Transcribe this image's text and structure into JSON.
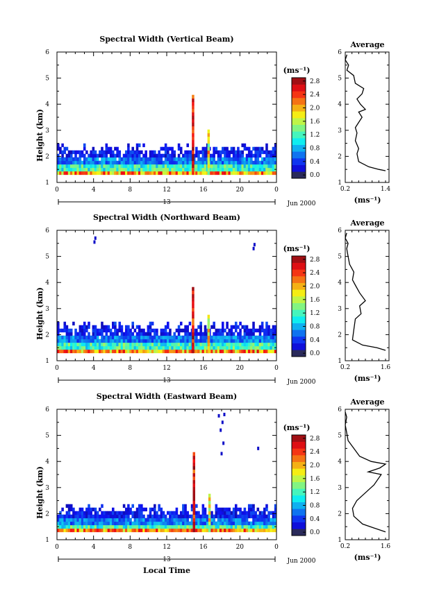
{
  "chart_data": [
    {
      "type": "heatmap",
      "title": "Spectral Width (Vertical Beam)",
      "ylabel": "Height (km)",
      "x_ticks": [
        "0",
        "4",
        "8",
        "12",
        "16",
        "20",
        "0"
      ],
      "day_label": "13",
      "date_label": "Jun 2000",
      "xlim": [
        0,
        24
      ],
      "ylim": [
        1,
        6
      ],
      "y_ticks": [
        "1",
        "2",
        "3",
        "4",
        "5",
        "6"
      ],
      "colorbar": {
        "unit": "(ms⁻¹)",
        "ticks": [
          "0.0",
          "0.4",
          "0.8",
          "1.2",
          "1.6",
          "2.0",
          "2.4",
          "2.8"
        ],
        "range": [
          0,
          3.0
        ]
      },
      "layer_top_km": 2.5,
      "spikes": [
        {
          "hour": 14.9,
          "top_km": 4.35
        },
        {
          "hour": 16.6,
          "top_km": 3.0
        }
      ],
      "isolated_echoes": [],
      "average_profile": {
        "title": "Average",
        "xlabel": "(ms⁻¹)",
        "x_ticks": [
          "0.2",
          "1.4"
        ],
        "xlim": [
          0.2,
          1.4
        ],
        "points": [
          [
            1.4,
            1.45
          ],
          [
            1.2,
            1.5
          ],
          [
            0.9,
            1.6
          ],
          [
            0.6,
            1.8
          ],
          [
            0.55,
            2.1
          ],
          [
            0.6,
            2.3
          ],
          [
            0.5,
            2.6
          ],
          [
            0.55,
            2.9
          ],
          [
            0.5,
            3.1
          ],
          [
            0.6,
            3.3
          ],
          [
            0.7,
            3.5
          ],
          [
            0.6,
            3.7
          ],
          [
            0.8,
            3.8
          ],
          [
            0.65,
            4.0
          ],
          [
            0.55,
            4.2
          ],
          [
            0.7,
            4.4
          ],
          [
            0.75,
            4.6
          ],
          [
            0.5,
            4.8
          ],
          [
            0.45,
            5.1
          ],
          [
            0.25,
            5.3
          ],
          [
            0.3,
            5.5
          ],
          [
            0.2,
            5.7
          ],
          [
            0.25,
            5.9
          ]
        ]
      }
    },
    {
      "type": "heatmap",
      "title": "Spectral Width (Northward Beam)",
      "ylabel": "Height (km)",
      "x_ticks": [
        "0",
        "4",
        "8",
        "12",
        "16",
        "20",
        "0"
      ],
      "day_label": "13",
      "date_label": "Jun 2000",
      "xlim": [
        0,
        24
      ],
      "ylim": [
        1,
        6
      ],
      "y_ticks": [
        "1",
        "2",
        "3",
        "4",
        "5",
        "6"
      ],
      "colorbar": {
        "unit": "(ms⁻¹)",
        "ticks": [
          "0.0",
          "0.4",
          "0.8",
          "1.2",
          "1.6",
          "2.0",
          "2.4",
          "2.8"
        ],
        "range": [
          0,
          3.0
        ]
      },
      "layer_top_km": 2.5,
      "spikes": [
        {
          "hour": 14.9,
          "top_km": 3.8
        },
        {
          "hour": 16.6,
          "top_km": 2.7
        }
      ],
      "isolated_echoes": [
        {
          "hour": 4.1,
          "km": 5.55
        },
        {
          "hour": 4.2,
          "km": 5.7
        },
        {
          "hour": 21.5,
          "km": 5.3
        },
        {
          "hour": 21.6,
          "km": 5.45
        }
      ],
      "average_profile": {
        "title": "Average",
        "xlabel": "(ms⁻¹)",
        "x_ticks": [
          "0.2",
          "1.6"
        ],
        "xlim": [
          0.2,
          1.6
        ],
        "points": [
          [
            1.6,
            1.4
          ],
          [
            1.3,
            1.5
          ],
          [
            0.8,
            1.6
          ],
          [
            0.45,
            1.8
          ],
          [
            0.5,
            2.2
          ],
          [
            0.55,
            2.6
          ],
          [
            0.75,
            2.8
          ],
          [
            0.7,
            3.1
          ],
          [
            0.9,
            3.3
          ],
          [
            0.7,
            3.6
          ],
          [
            0.55,
            3.9
          ],
          [
            0.45,
            4.1
          ],
          [
            0.5,
            4.4
          ],
          [
            0.35,
            4.7
          ],
          [
            0.3,
            5.0
          ],
          [
            0.25,
            5.3
          ],
          [
            0.3,
            5.5
          ],
          [
            0.2,
            5.7
          ],
          [
            0.25,
            5.9
          ]
        ]
      }
    },
    {
      "type": "heatmap",
      "title": "Spectral Width (Eastward Beam)",
      "ylabel": "Height (km)",
      "xlabel": "Local Time",
      "x_ticks": [
        "0",
        "4",
        "8",
        "12",
        "16",
        "20",
        "0"
      ],
      "day_label": "13",
      "date_label": "Jun 2000",
      "xlim": [
        0,
        24
      ],
      "ylim": [
        1,
        6
      ],
      "y_ticks": [
        "1",
        "2",
        "3",
        "4",
        "5",
        "6"
      ],
      "colorbar": {
        "unit": "(ms⁻¹)",
        "ticks": [
          "0.0",
          "0.4",
          "0.8",
          "1.2",
          "1.6",
          "2.0",
          "2.4",
          "2.8"
        ],
        "range": [
          0,
          3.0
        ]
      },
      "layer_top_km": 2.4,
      "spikes": [
        {
          "hour": 15.0,
          "top_km": 4.35
        },
        {
          "hour": 16.7,
          "top_km": 2.8
        }
      ],
      "isolated_echoes": [
        {
          "hour": 17.7,
          "km": 5.75
        },
        {
          "hour": 18.3,
          "km": 5.8
        },
        {
          "hour": 18.1,
          "km": 5.5
        },
        {
          "hour": 17.9,
          "km": 5.2
        },
        {
          "hour": 18.2,
          "km": 4.7
        },
        {
          "hour": 18.0,
          "km": 4.3
        },
        {
          "hour": 22.0,
          "km": 4.5
        }
      ],
      "average_profile": {
        "title": "Average",
        "xlabel": "(ms⁻¹)",
        "x_ticks": [
          "0.2",
          "1.6"
        ],
        "xlim": [
          0.2,
          1.6
        ],
        "points": [
          [
            1.6,
            1.3
          ],
          [
            1.2,
            1.45
          ],
          [
            0.8,
            1.6
          ],
          [
            0.5,
            1.9
          ],
          [
            0.45,
            2.2
          ],
          [
            0.6,
            2.5
          ],
          [
            0.9,
            2.8
          ],
          [
            1.2,
            3.1
          ],
          [
            1.45,
            3.5
          ],
          [
            1.0,
            3.6
          ],
          [
            1.4,
            3.75
          ],
          [
            1.6,
            3.9
          ],
          [
            1.1,
            4.0
          ],
          [
            0.7,
            4.2
          ],
          [
            0.5,
            4.5
          ],
          [
            0.3,
            4.8
          ],
          [
            0.25,
            5.1
          ],
          [
            0.2,
            5.4
          ],
          [
            0.25,
            5.7
          ],
          [
            0.2,
            5.9
          ]
        ]
      }
    }
  ]
}
